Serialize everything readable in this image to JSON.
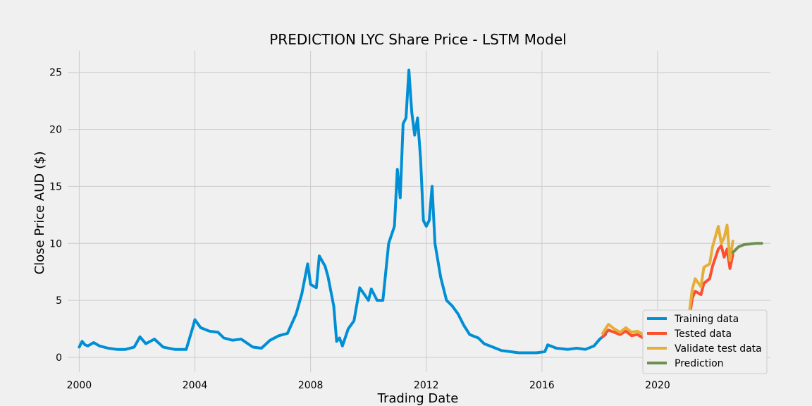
{
  "chart_data": {
    "type": "line",
    "title": "PREDICTION LYC Share Price - LSTM Model",
    "xlabel": "Trading Date",
    "ylabel": "Close Price AUD ($)",
    "xlim": [
      1999.6,
      2023.9
    ],
    "ylim": [
      -1.3,
      26.9
    ],
    "x_ticks": [
      2000,
      2004,
      2008,
      2012,
      2016,
      2020
    ],
    "x_tick_labels": [
      "2000",
      "2004",
      "2008",
      "2012",
      "2016",
      "2020"
    ],
    "y_ticks": [
      0,
      5,
      10,
      15,
      20,
      25
    ],
    "y_tick_labels": [
      "0",
      "5",
      "10",
      "15",
      "20",
      "25"
    ],
    "grid": true,
    "legend_position": "lower-right",
    "series": [
      {
        "name": "Training data",
        "color": "#008fd5",
        "x": [
          2000.0,
          2000.1,
          2000.2,
          2000.3,
          2000.5,
          2000.7,
          2001.0,
          2001.3,
          2001.6,
          2001.9,
          2002.1,
          2002.3,
          2002.6,
          2002.9,
          2003.3,
          2003.7,
          2003.9,
          2004.0,
          2004.2,
          2004.5,
          2004.8,
          2005.0,
          2005.3,
          2005.6,
          2006.0,
          2006.3,
          2006.6,
          2006.9,
          2007.2,
          2007.5,
          2007.7,
          2007.9,
          2008.0,
          2008.2,
          2008.3,
          2008.5,
          2008.6,
          2008.8,
          2008.9,
          2009.0,
          2009.1,
          2009.3,
          2009.5,
          2009.7,
          2010.0,
          2010.1,
          2010.3,
          2010.5,
          2010.7,
          2010.9,
          2011.0,
          2011.1,
          2011.2,
          2011.3,
          2011.4,
          2011.5,
          2011.6,
          2011.7,
          2011.8,
          2011.9,
          2012.0,
          2012.1,
          2012.2,
          2012.3,
          2012.5,
          2012.7,
          2012.9,
          2013.1,
          2013.3,
          2013.5,
          2013.8,
          2014.0,
          2014.3,
          2014.6,
          2014.9,
          2015.2,
          2015.5,
          2015.8,
          2016.1,
          2016.2,
          2016.5,
          2016.9,
          2017.2,
          2017.5,
          2017.8,
          2018.0,
          2018.2
        ],
        "y": [
          0.9,
          1.4,
          1.1,
          1.0,
          1.3,
          1.0,
          0.8,
          0.7,
          0.7,
          0.9,
          1.8,
          1.2,
          1.6,
          0.9,
          0.7,
          0.7,
          2.4,
          3.3,
          2.6,
          2.3,
          2.2,
          1.7,
          1.5,
          1.6,
          0.9,
          0.8,
          1.5,
          1.9,
          2.1,
          3.8,
          5.6,
          8.2,
          6.4,
          6.1,
          8.9,
          8.0,
          7.1,
          4.5,
          1.4,
          1.7,
          1.0,
          2.5,
          3.2,
          6.1,
          5.0,
          6.0,
          5.0,
          5.0,
          10.0,
          11.5,
          16.5,
          14.0,
          20.5,
          21.0,
          25.2,
          21.5,
          19.5,
          21.0,
          17.5,
          12.0,
          11.5,
          12.0,
          15.0,
          10.0,
          7.0,
          5.0,
          4.5,
          3.8,
          2.8,
          2.0,
          1.7,
          1.2,
          0.9,
          0.6,
          0.5,
          0.4,
          0.4,
          0.4,
          0.5,
          1.1,
          0.8,
          0.7,
          0.8,
          0.7,
          1.0,
          1.6,
          2.0
        ]
      },
      {
        "name": "Tested data",
        "color": "#fc4f30",
        "x": [
          2018.1,
          2018.3,
          2018.5,
          2018.7,
          2018.9,
          2019.1,
          2019.3,
          2019.5,
          2019.7,
          2019.9,
          2020.1,
          2020.3,
          2020.5,
          2020.7,
          2020.9,
          2021.1,
          2021.2,
          2021.3,
          2021.5,
          2021.6,
          2021.8,
          2021.9,
          2022.1,
          2022.2,
          2022.3,
          2022.4,
          2022.5,
          2022.6
        ],
        "y": [
          1.8,
          2.4,
          2.2,
          2.0,
          2.3,
          1.9,
          2.0,
          1.7,
          2.3,
          2.4,
          2.6,
          2.3,
          2.5,
          2.2,
          2.4,
          3.5,
          5.2,
          5.8,
          5.5,
          6.5,
          6.9,
          8.0,
          9.5,
          9.8,
          8.8,
          9.5,
          7.8,
          9.0
        ]
      },
      {
        "name": "Validate test data",
        "color": "#e5ae38",
        "x": [
          2018.1,
          2018.3,
          2018.5,
          2018.7,
          2018.9,
          2019.1,
          2019.3,
          2019.5,
          2019.7,
          2019.9,
          2020.1,
          2020.3,
          2020.5,
          2020.7,
          2020.9,
          2021.1,
          2021.2,
          2021.3,
          2021.5,
          2021.6,
          2021.8,
          2021.9,
          2022.1,
          2022.2,
          2022.3,
          2022.4,
          2022.5,
          2022.6
        ],
        "y": [
          2.1,
          2.9,
          2.5,
          2.2,
          2.6,
          2.2,
          2.3,
          2.0,
          2.7,
          2.9,
          3.0,
          2.7,
          2.8,
          2.5,
          2.7,
          4.0,
          6.0,
          6.9,
          6.2,
          7.9,
          8.2,
          9.7,
          11.5,
          10.0,
          10.5,
          11.6,
          8.5,
          10.2
        ]
      },
      {
        "name": "Prediction",
        "color": "#6d904f",
        "x": [
          2022.6,
          2022.8,
          2023.0,
          2023.2,
          2023.4,
          2023.6
        ],
        "y": [
          9.2,
          9.7,
          9.9,
          9.95,
          10.0,
          10.0
        ]
      }
    ]
  }
}
